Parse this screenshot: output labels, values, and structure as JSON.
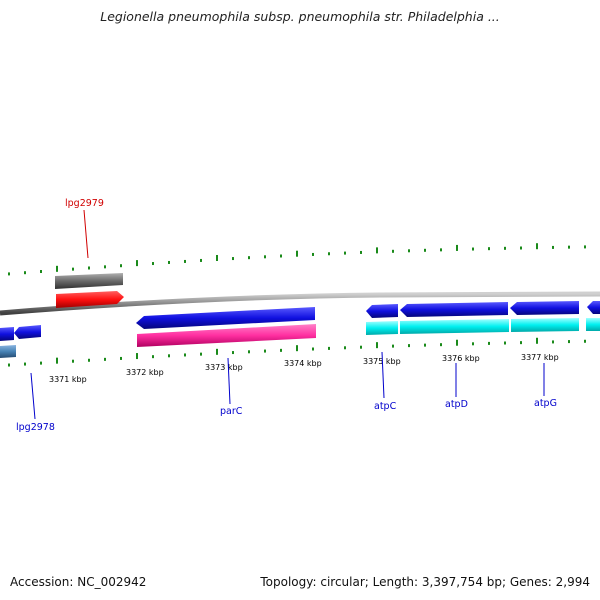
{
  "title": "Legionella pneumophila subsp. pneumophila str. Philadelphia ...",
  "footer": {
    "accession": "Accession: NC_002942",
    "summary": "Topology: circular; Length: 3,397,754 bp; Genes: 2,994"
  },
  "colors": {
    "backbone": "#8a8a8a",
    "gc_ticks": "#1a8a1a",
    "forward_gene": "#6a6a6a",
    "forward_cds": "#ff1010",
    "reverse_gene": "#1010e0",
    "reverse_cds_pink": "#ff2fa0",
    "reverse_cds_cyan": "#00f0f0",
    "gene_label_red": "#d00000",
    "gene_label_blue": "#0000cc"
  },
  "scale_ticks": [
    {
      "label": "3371 kbp"
    },
    {
      "label": "3372 kbp"
    },
    {
      "label": "3373 kbp"
    },
    {
      "label": "3374 kbp"
    },
    {
      "label": "3375 kbp"
    },
    {
      "label": "3376 kbp"
    },
    {
      "label": "3377 kbp"
    }
  ],
  "gene_labels": [
    {
      "name": "lpg2979",
      "strand": "forward"
    },
    {
      "name": "lpg2978",
      "strand": "reverse"
    },
    {
      "name": "parC",
      "strand": "reverse"
    },
    {
      "name": "atpC",
      "strand": "reverse"
    },
    {
      "name": "atpD",
      "strand": "reverse"
    },
    {
      "name": "atpG",
      "strand": "reverse"
    }
  ]
}
